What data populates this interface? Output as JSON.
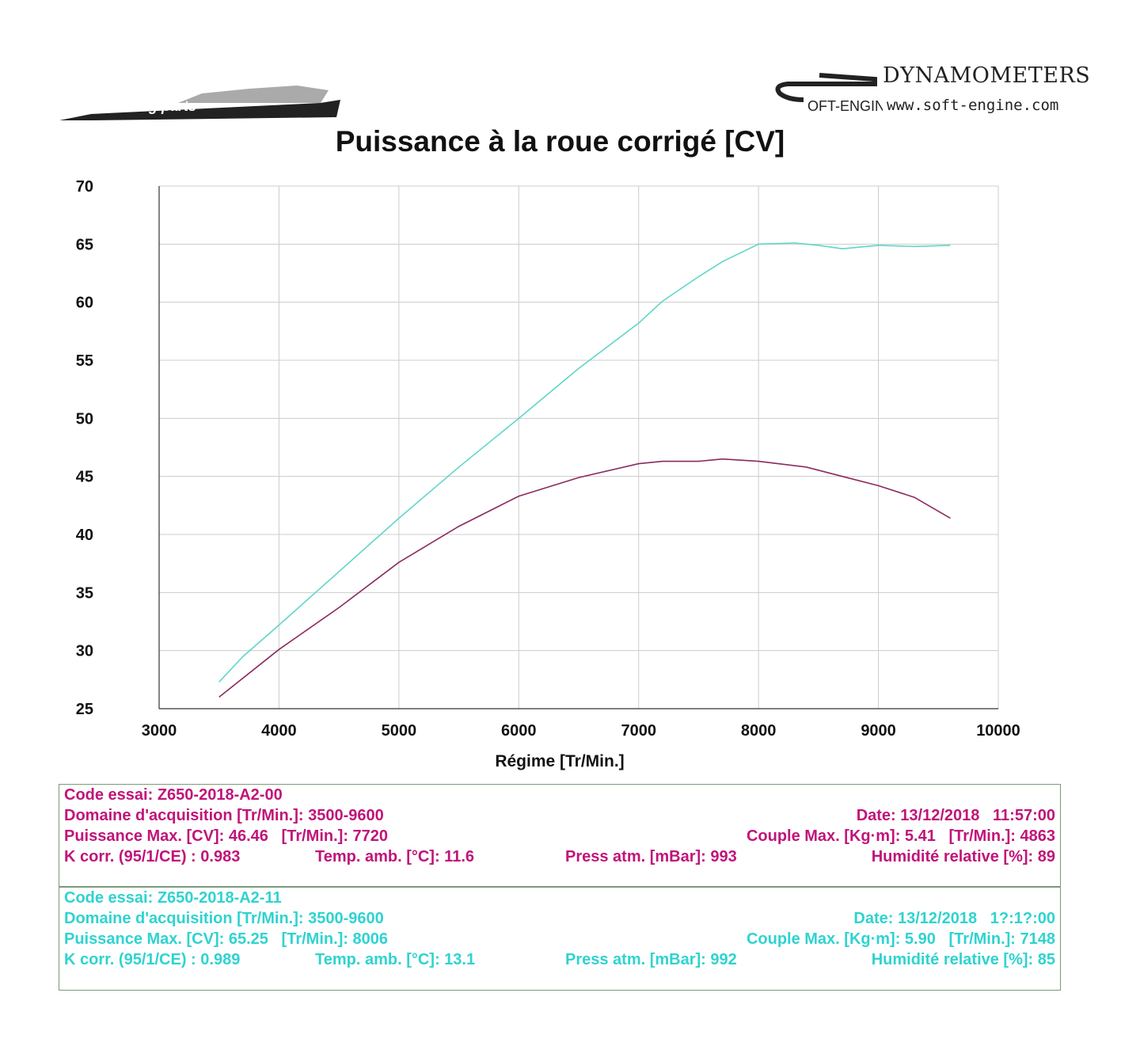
{
  "logos": {
    "left_text": "racing parts",
    "brand": "DYNAMOMETERS",
    "url": "www.soft-engine.com",
    "mark_text": "SOFT-ENGINE"
  },
  "chart_data": {
    "type": "line",
    "title": "Puissance à la roue corrigé [CV]",
    "xlabel": "Régime [Tr/Min.]",
    "ylabel": "",
    "xlim": [
      3000,
      10000
    ],
    "ylim": [
      25,
      70
    ],
    "xticks": [
      "3000",
      "4000",
      "5000",
      "6000",
      "7000",
      "8000",
      "9000",
      "10000"
    ],
    "yticks": [
      "70",
      "65",
      "60",
      "55",
      "50",
      "45",
      "40",
      "35",
      "30",
      "25"
    ],
    "grid": true,
    "series": [
      {
        "name": "Z650-2018-A2-11",
        "color": "#5fd6c8",
        "x": [
          3500,
          3700,
          4000,
          4500,
          5000,
          5500,
          6000,
          6500,
          7000,
          7200,
          7500,
          7700,
          8000,
          8300,
          8500,
          8700,
          9000,
          9300,
          9600
        ],
        "y": [
          27.3,
          29.5,
          32.2,
          36.8,
          41.4,
          45.8,
          50,
          54.3,
          58.2,
          60.1,
          62.2,
          63.5,
          65,
          65.1,
          64.9,
          64.6,
          64.9,
          64.8,
          64.9
        ]
      },
      {
        "name": "Z650-2018-A2-00",
        "color": "#8a2a5e",
        "x": [
          3500,
          4000,
          4500,
          5000,
          5500,
          6000,
          6500,
          7000,
          7200,
          7500,
          7700,
          8000,
          8400,
          8700,
          9000,
          9300,
          9600
        ],
        "y": [
          26,
          30.1,
          33.7,
          37.6,
          40.7,
          43.3,
          44.9,
          46.1,
          46.3,
          46.3,
          46.5,
          46.3,
          45.8,
          45,
          44.2,
          43.2,
          41.4
        ]
      }
    ]
  },
  "runs": [
    {
      "code": "Code essai: Z650-2018-A2-00",
      "domaine": "Domaine d'acquisition [Tr/Min.]: 3500-9600",
      "date": "Date: 13/12/2018   11:57:00",
      "puissance": "Puissance Max. [CV]: 46.46   [Tr/Min.]: 7720",
      "couple": "Couple Max. [Kg·m]: 5.41   [Tr/Min.]: 4863",
      "kcorr": "K corr. (95/1/CE) : 0.983",
      "temp": "Temp. amb. [°C]: 11.6",
      "press": "Press atm. [mBar]: 993",
      "humid": "Humidité relative [%]: 89"
    },
    {
      "code": "Code essai: Z650-2018-A2-11",
      "domaine": "Domaine d'acquisition [Tr/Min.]: 3500-9600",
      "date": "Date: 13/12/2018   1?:1?:00",
      "puissance": "Puissance Max. [CV]: 65.25   [Tr/Min.]: 8006",
      "couple": "Couple Max. [Kg·m]: 5.90   [Tr/Min.]: 7148",
      "kcorr": "K corr. (95/1/CE) : 0.989",
      "temp": "Temp. amb. [°C]: 13.1",
      "press": "Press atm. [mBar]: 992",
      "humid": "Humidité relative [%]: 85"
    }
  ]
}
